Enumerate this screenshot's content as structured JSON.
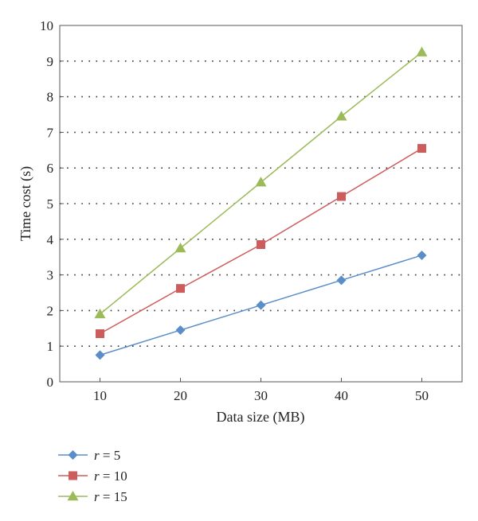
{
  "chart_data": {
    "type": "line",
    "title": "",
    "xlabel": "Data size (MB)",
    "ylabel": "Time cost (s)",
    "x": [
      10,
      20,
      30,
      40,
      50
    ],
    "x_ticks": [
      "10",
      "20",
      "30",
      "40",
      "50"
    ],
    "xlim": [
      5,
      55
    ],
    "ylim": [
      0,
      10
    ],
    "y_ticks": [
      "0",
      "1",
      "2",
      "3",
      "4",
      "5",
      "6",
      "7",
      "8",
      "9",
      "10"
    ],
    "grid": "horizontal dotted",
    "legend_position": "bottom-left",
    "series": [
      {
        "name_var": "r",
        "name_rest": " = 5",
        "values": [
          0.75,
          1.45,
          2.15,
          2.85,
          3.55
        ],
        "color": "#5b8ec9",
        "marker": "diamond"
      },
      {
        "name_var": "r",
        "name_rest": " = 10",
        "values": [
          1.35,
          2.62,
          3.85,
          5.2,
          6.55
        ],
        "color": "#cd5c5c",
        "marker": "square"
      },
      {
        "name_var": "r",
        "name_rest": " = 15",
        "values": [
          1.9,
          3.75,
          5.6,
          7.45,
          9.25
        ],
        "color": "#9bbb59",
        "marker": "triangle"
      }
    ]
  }
}
